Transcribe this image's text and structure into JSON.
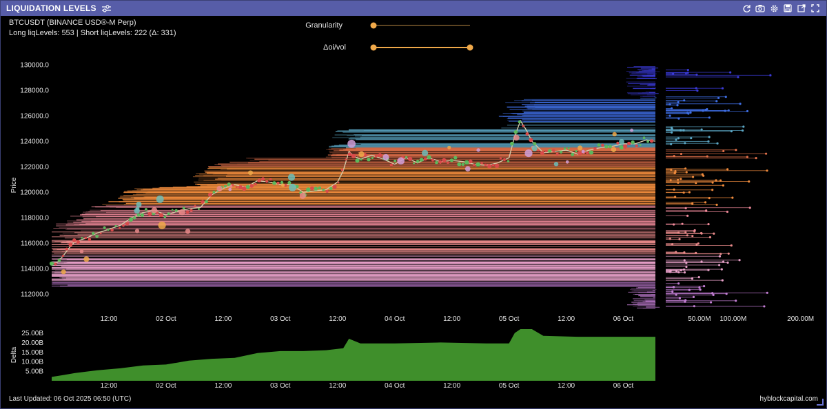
{
  "panel": {
    "title": "LIQUIDATION LEVELS",
    "symbol": "BTCUSDT (BINANCE USD®-M Perp)",
    "stats": "Long liqLevels: 553 | Short liqLevels: 222 (Δ: 331)",
    "icons": [
      "refresh-icon",
      "camera-icon",
      "settings-icon",
      "save-icon",
      "external-link-icon",
      "expand-icon"
    ]
  },
  "controls": {
    "granularity_label": "Granularity",
    "granularity_value": 0.0,
    "oivol_label": "Δoi/vol",
    "oivol_range": [
      0.0,
      1.0
    ],
    "accent": "#f0a94a"
  },
  "chart_data": [
    {
      "type": "line",
      "name": "price",
      "ylabel": "Price",
      "ylim": [
        110500,
        130600
      ],
      "yticks": [
        "130000.0",
        "128000.0",
        "126000.0",
        "124000.0",
        "122000.0",
        "120000.0",
        "118000.0",
        "116000.0",
        "114000.0",
        "112000.0"
      ],
      "ytick_values": [
        130000,
        128000,
        126000,
        124000,
        122000,
        120000,
        118000,
        116000,
        114000,
        112000
      ],
      "xticks": [
        "12:00",
        "02 Oct",
        "12:00",
        "03 Oct",
        "12:00",
        "04 Oct",
        "12:00",
        "05 Oct",
        "12:00",
        "06 Oct"
      ],
      "xtick_positions": [
        0.5,
        1.0,
        1.5,
        2.0,
        2.5,
        3.0,
        3.5,
        4.0,
        4.5,
        5.0
      ],
      "xlim": [
        0.0,
        5.28
      ],
      "x": [
        0.0,
        0.05,
        0.1,
        0.15,
        0.2,
        0.3,
        0.4,
        0.5,
        0.6,
        0.7,
        0.8,
        0.9,
        1.0,
        1.1,
        1.2,
        1.3,
        1.4,
        1.5,
        1.6,
        1.7,
        1.8,
        1.9,
        2.0,
        2.1,
        2.2,
        2.3,
        2.4,
        2.5,
        2.55,
        2.6,
        2.65,
        2.7,
        2.8,
        2.9,
        3.0,
        3.1,
        3.2,
        3.3,
        3.4,
        3.5,
        3.6,
        3.7,
        3.8,
        3.9,
        4.0,
        4.05,
        4.1,
        4.15,
        4.2,
        4.3,
        4.4,
        4.5,
        4.6,
        4.7,
        4.8,
        4.9,
        5.0,
        5.1,
        5.2,
        5.28
      ],
      "values": [
        114400,
        114500,
        115000,
        115600,
        116100,
        116400,
        116800,
        117100,
        117400,
        118000,
        118400,
        118600,
        118200,
        118500,
        118700,
        118800,
        119800,
        120300,
        120600,
        120400,
        120900,
        120800,
        120600,
        120600,
        120000,
        120100,
        120200,
        120800,
        121700,
        123200,
        122800,
        122600,
        122900,
        122600,
        122200,
        122700,
        122300,
        122700,
        122400,
        122500,
        122400,
        122200,
        122100,
        122300,
        122700,
        124400,
        125600,
        124900,
        124000,
        123100,
        123200,
        123300,
        123000,
        123300,
        123500,
        123600,
        123800,
        123800,
        124100,
        124000
      ]
    },
    {
      "type": "bar",
      "name": "liquidation-volume-profile",
      "xticks": [
        "50.00M",
        "100.00M",
        "200.00M"
      ],
      "xtick_values": [
        50,
        100,
        200
      ]
    },
    {
      "type": "area",
      "name": "delta",
      "ylabel": "Delta",
      "ylim": [
        0,
        27
      ],
      "yticks": [
        "25.00B",
        "20.00B",
        "15.00B",
        "10.00B",
        "5.00B"
      ],
      "ytick_values": [
        25,
        20,
        15,
        10,
        5
      ],
      "xticks": [
        "12:00",
        "02 Oct",
        "12:00",
        "03 Oct",
        "12:00",
        "04 Oct",
        "12:00",
        "05 Oct",
        "12:00",
        "06 Oct"
      ],
      "xtick_positions": [
        0.5,
        1.0,
        1.5,
        2.0,
        2.5,
        3.0,
        3.5,
        4.0,
        4.5,
        5.0
      ],
      "xlim": [
        0.0,
        5.28
      ],
      "x": [
        0.0,
        0.1,
        0.2,
        0.4,
        0.6,
        0.8,
        1.0,
        1.2,
        1.4,
        1.6,
        1.8,
        2.0,
        2.2,
        2.4,
        2.55,
        2.6,
        2.7,
        3.0,
        3.4,
        3.8,
        4.0,
        4.05,
        4.1,
        4.2,
        4.3,
        4.6,
        5.0,
        5.28
      ],
      "values": [
        2.0,
        3.0,
        4.0,
        5.5,
        6.5,
        8.0,
        8.5,
        10.5,
        11.5,
        12.0,
        14.5,
        15.5,
        15.5,
        16.0,
        17.0,
        22.0,
        19.5,
        19.5,
        20.0,
        19.5,
        19.5,
        25.0,
        28.0,
        27.5,
        23.5,
        23.0,
        23.0,
        23.0
      ],
      "fill": "#3f8f2b"
    }
  ],
  "footer": {
    "last_updated": "Last Updated: 06 Oct 2025 06:50 (UTC)",
    "brand": "hyblockcapital.com"
  }
}
